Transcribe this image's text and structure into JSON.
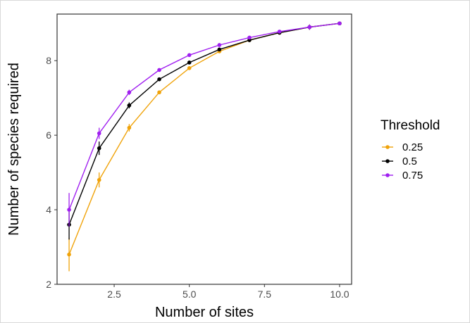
{
  "chart_data": {
    "type": "line",
    "title": "",
    "xlabel": "Number of sites",
    "ylabel": "Number of species required",
    "xlim": [
      0.6,
      10.4
    ],
    "ylim": [
      2.0,
      9.25
    ],
    "xticks": [
      2.5,
      5.0,
      7.5,
      10.0
    ],
    "xtick_labels": [
      "2.5",
      "5.0",
      "7.5",
      "10.0"
    ],
    "yticks": [
      2,
      4,
      6,
      8
    ],
    "ytick_labels": [
      "2",
      "4",
      "6",
      "8"
    ],
    "grid": false,
    "legend": {
      "title": "Threshold",
      "position": "right"
    },
    "x": [
      1,
      2,
      3,
      4,
      5,
      6,
      7,
      8,
      9,
      10
    ],
    "series": [
      {
        "name": "0.25",
        "color": "#f0a30a",
        "values": [
          2.8,
          4.8,
          6.2,
          7.15,
          7.8,
          8.25,
          8.55,
          8.75,
          8.9,
          9.0
        ],
        "error": [
          0.45,
          0.2,
          0.1,
          0.05,
          0.04,
          0.03,
          0.03,
          0.02,
          0.07,
          0.02
        ]
      },
      {
        "name": "0.5",
        "color": "#000000",
        "values": [
          3.6,
          5.65,
          6.8,
          7.5,
          7.95,
          8.3,
          8.55,
          8.75,
          8.9,
          9.0
        ],
        "error": [
          0.4,
          0.18,
          0.08,
          0.05,
          0.04,
          0.03,
          0.03,
          0.02,
          0.07,
          0.02
        ]
      },
      {
        "name": "0.75",
        "color": "#a020f0",
        "values": [
          4.0,
          6.05,
          7.15,
          7.75,
          8.15,
          8.42,
          8.62,
          8.78,
          8.9,
          9.0
        ],
        "error": [
          0.45,
          0.15,
          0.07,
          0.04,
          0.03,
          0.03,
          0.02,
          0.02,
          0.07,
          0.02
        ]
      }
    ]
  }
}
